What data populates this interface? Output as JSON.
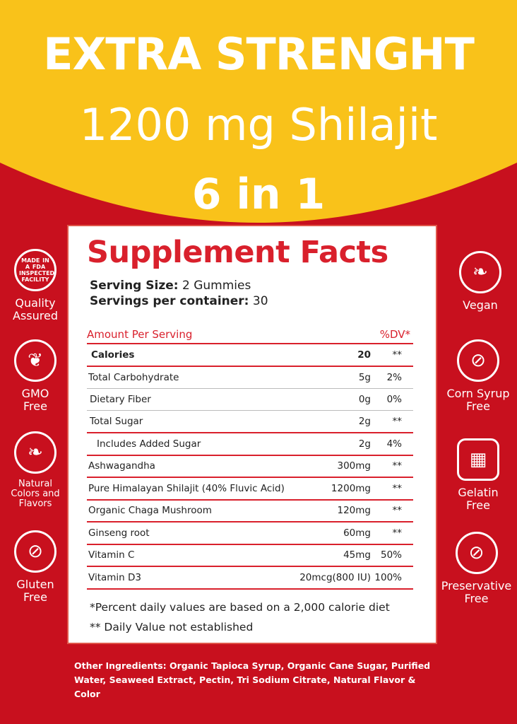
{
  "headline": {
    "line1": "EXTRA STRENGHT",
    "line2": "1200 mg Shilajit",
    "line3": "6 in 1"
  },
  "facts": {
    "title": "Supplement Facts",
    "serving_size_label": "Serving Size:",
    "serving_size": "2 Gummies",
    "servings_label": "Servings per container:",
    "servings": "30",
    "header": {
      "amount": "Amount Per Serving",
      "dv": "%DV*"
    },
    "rows": [
      {
        "name": "Calories",
        "amount": "20",
        "dv": "**"
      },
      {
        "name": "Total Carbohydrate",
        "amount": "5g",
        "dv": "2%"
      },
      {
        "name": "Dietary Fiber",
        "amount": "0g",
        "dv": "0%"
      },
      {
        "name": "Total Sugar",
        "amount": "2g",
        "dv": "**"
      },
      {
        "name": "Includes Added Sugar",
        "amount": "2g",
        "dv": "4%"
      },
      {
        "name": "Ashwagandha",
        "amount": "300mg",
        "dv": "**"
      },
      {
        "name": "Pure Himalayan Shilajit (40% Fluvic Acid)",
        "amount": "1200mg",
        "dv": "**"
      },
      {
        "name": "Organic Chaga Mushroom",
        "amount": "120mg",
        "dv": "**"
      },
      {
        "name": "Ginseng root",
        "amount": "60mg",
        "dv": "**"
      },
      {
        "name": "Vitamin C",
        "amount": "45mg",
        "dv": "50%"
      },
      {
        "name": "Vitamin D3",
        "amount": "20mcg(800 IU)",
        "dv": "100%"
      }
    ],
    "note1": "*Percent daily values are based on a 2,000 calorie diet",
    "note2": "** Daily Value not established"
  },
  "badges_left": [
    {
      "icon": "fda-badge-icon",
      "label": "Quality Assured",
      "badge_text": "MADE IN A FDA INSPECTED FACILITY"
    },
    {
      "icon": "plant-icon",
      "label": "GMO Free"
    },
    {
      "icon": "leaf-icon",
      "label": "Natural Colors and Flavors"
    },
    {
      "icon": "no-gluten-icon",
      "label": "Gluten Free"
    }
  ],
  "badges_right": [
    {
      "icon": "vegan-leaf-icon",
      "label": "Vegan"
    },
    {
      "icon": "no-corn-icon",
      "label": "Corn Syrup Free"
    },
    {
      "icon": "gelatin-icon",
      "label": "Gelatin Free"
    },
    {
      "icon": "no-preservative-icon",
      "label": "Preservative Free"
    }
  ],
  "other_ingredients": "Other Ingredients: Organic Tapioca Syrup, Organic Cane Sugar, Purified Water, Seaweed Extract, Pectin, Tri Sodium Citrate, Natural Flavor & Color",
  "colors": {
    "yellow": "#f9c21a",
    "red": "#c8101e",
    "title_red": "#d9202c"
  }
}
